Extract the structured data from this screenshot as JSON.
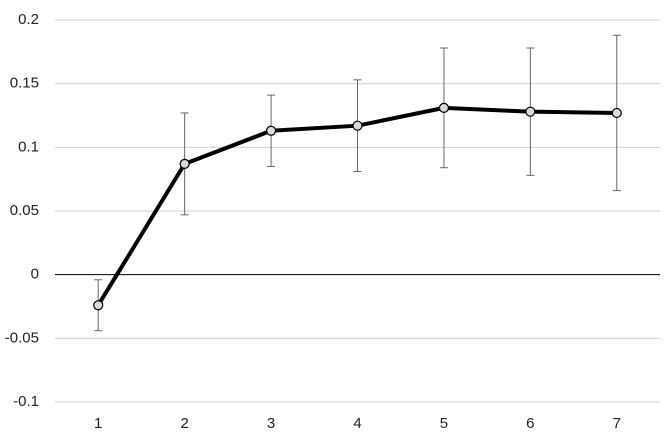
{
  "chart_data": {
    "type": "line",
    "categories": [
      "1",
      "2",
      "3",
      "4",
      "5",
      "6",
      "7"
    ],
    "values": [
      -0.024,
      0.087,
      0.113,
      0.117,
      0.131,
      0.128,
      0.127
    ],
    "errors": [
      0.02,
      0.04,
      0.028,
      0.036,
      0.047,
      0.05,
      0.061
    ],
    "color": "#000000",
    "ylim": [
      -0.1,
      0.2
    ],
    "yticks": [
      -0.1,
      -0.05,
      0,
      0.05,
      0.1,
      0.15,
      0.2
    ],
    "grid": true
  }
}
